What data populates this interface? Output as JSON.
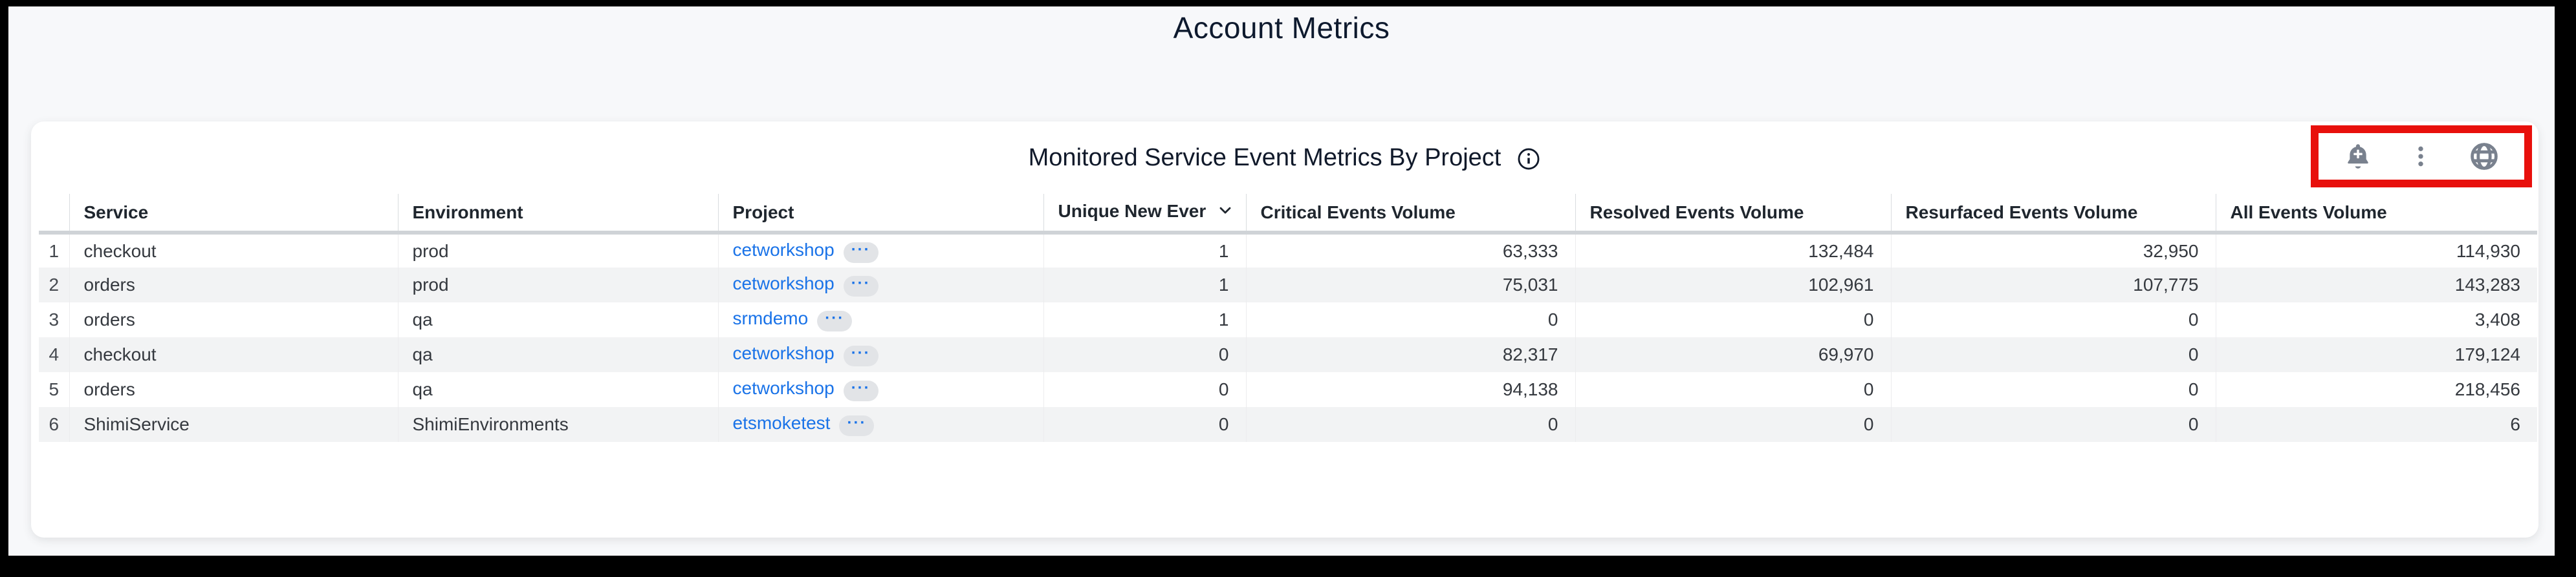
{
  "page": {
    "title": "Account Metrics"
  },
  "panel": {
    "title": "Monitored Service Event Metrics By Project",
    "actions": {
      "alert_icon": "bell-plus",
      "menu_icon": "kebab-vertical-dots",
      "globe_icon": "globe"
    },
    "highlight_color": "#e8100c",
    "icon_color": "#79818e",
    "accent_color": "#1a73e8"
  },
  "table": {
    "columns": [
      "",
      "Service",
      "Environment",
      "Project",
      "Unique New Ever",
      "Critical Events Volume",
      "Resolved Events Volume",
      "Resurfaced Events Volume",
      "All Events Volume"
    ],
    "sorted_column": "Unique New Ever",
    "sort_direction": "desc",
    "project_badge": "···",
    "rows": [
      {
        "index": "1",
        "service": "checkout",
        "environment": "prod",
        "project": "cetworkshop",
        "unique_new": "1",
        "critical": "63,333",
        "resolved": "132,484",
        "resurfaced": "32,950",
        "all_events": "114,930"
      },
      {
        "index": "2",
        "service": "orders",
        "environment": "prod",
        "project": "cetworkshop",
        "unique_new": "1",
        "critical": "75,031",
        "resolved": "102,961",
        "resurfaced": "107,775",
        "all_events": "143,283"
      },
      {
        "index": "3",
        "service": "orders",
        "environment": "qa",
        "project": "srmdemo",
        "unique_new": "1",
        "critical": "0",
        "resolved": "0",
        "resurfaced": "0",
        "all_events": "3,408"
      },
      {
        "index": "4",
        "service": "checkout",
        "environment": "qa",
        "project": "cetworkshop",
        "unique_new": "0",
        "critical": "82,317",
        "resolved": "69,970",
        "resurfaced": "0",
        "all_events": "179,124"
      },
      {
        "index": "5",
        "service": "orders",
        "environment": "qa",
        "project": "cetworkshop",
        "unique_new": "0",
        "critical": "94,138",
        "resolved": "0",
        "resurfaced": "0",
        "all_events": "218,456"
      },
      {
        "index": "6",
        "service": "ShimiService",
        "environment": "ShimiEnvironments",
        "project": "etsmoketest",
        "unique_new": "0",
        "critical": "0",
        "resolved": "0",
        "resurfaced": "0",
        "all_events": "6"
      }
    ]
  }
}
